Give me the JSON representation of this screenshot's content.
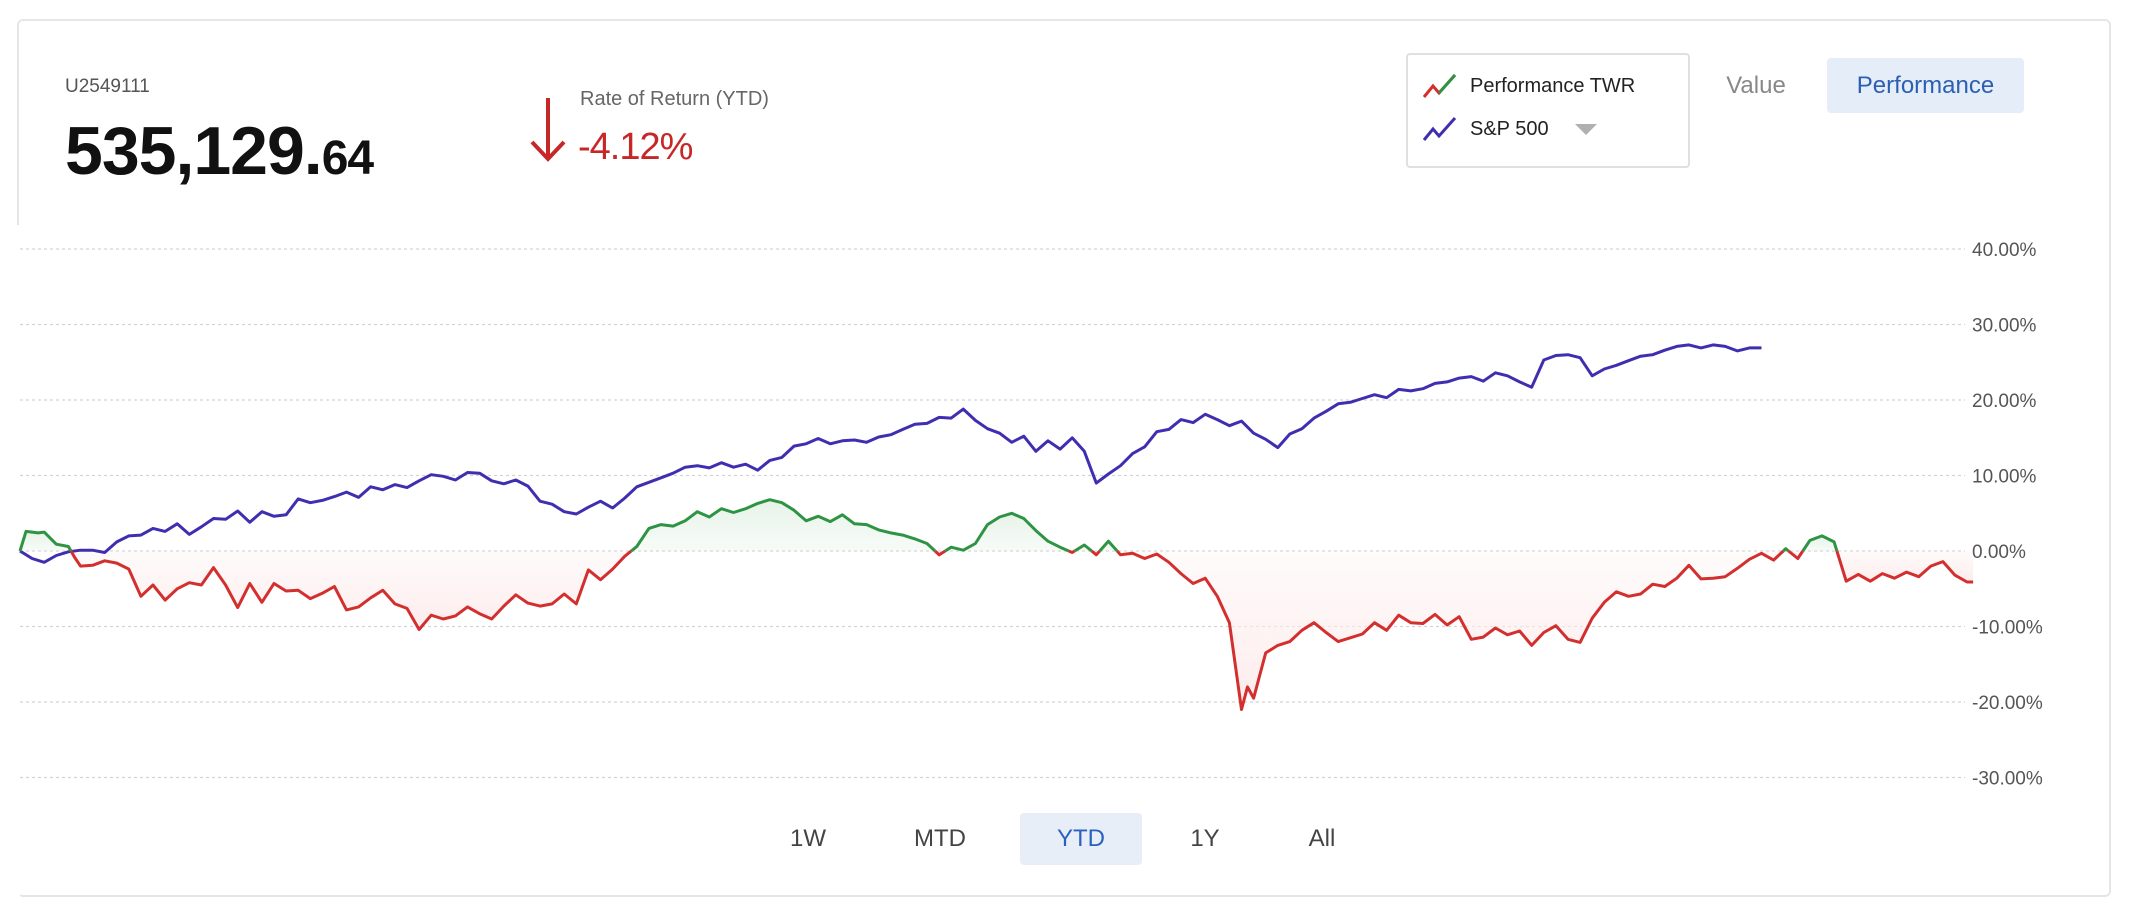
{
  "account": {
    "id": "U2549111",
    "balance_int": "535,129.",
    "balance_dec": "64"
  },
  "return": {
    "label": "Rate of Return (YTD)",
    "value": "-4.12%",
    "direction": "down",
    "color": "#c62828"
  },
  "legend": {
    "items": [
      {
        "label": "Performance TWR",
        "icon": "twr-line-icon"
      },
      {
        "label": "S&P 500",
        "icon": "benchmark-line-icon"
      }
    ]
  },
  "view_toggle": {
    "value_label": "Value",
    "performance_label": "Performance",
    "selected": "Performance"
  },
  "ranges": {
    "items": [
      {
        "label": "1W"
      },
      {
        "label": "MTD"
      },
      {
        "label": "YTD"
      },
      {
        "label": "1Y"
      },
      {
        "label": "All"
      }
    ],
    "selected": "YTD"
  },
  "chart_data": {
    "type": "line",
    "x_index_range": [
      0,
      300
    ],
    "ylim": [
      -30,
      40
    ],
    "yticks": [
      40,
      30,
      20,
      10,
      0,
      -10,
      -20,
      -30
    ],
    "ytick_labels": [
      "40.00%",
      "30.00%",
      "20.00%",
      "10.00%",
      "0.00%",
      "-10.00%",
      "-20.00%",
      "-30.00%"
    ],
    "grid": true,
    "legend_position": "top-right",
    "colors": {
      "positive": "#2e9444",
      "negative": "#d32f2f",
      "benchmark": "#3f2fb0",
      "positive_fill": "#e6f3e8",
      "negative_fill": "#fdecec"
    },
    "series": [
      {
        "name": "Performance TWR",
        "points": [
          [
            0,
            0
          ],
          [
            1,
            2.6
          ],
          [
            3,
            2.4
          ],
          [
            4,
            2.5
          ],
          [
            6,
            0.9
          ],
          [
            8,
            0.6
          ],
          [
            9,
            -0.8
          ],
          [
            10,
            -2
          ],
          [
            12,
            -1.9
          ],
          [
            14,
            -1.3
          ],
          [
            16,
            -1.6
          ],
          [
            18,
            -2.4
          ],
          [
            20,
            -6
          ],
          [
            22,
            -4.5
          ],
          [
            24,
            -6.5
          ],
          [
            26,
            -5
          ],
          [
            28,
            -4.2
          ],
          [
            30,
            -4.5
          ],
          [
            32,
            -2.2
          ],
          [
            34,
            -4.5
          ],
          [
            36,
            -7.5
          ],
          [
            38,
            -4.3
          ],
          [
            40,
            -6.8
          ],
          [
            42,
            -4.3
          ],
          [
            44,
            -5.3
          ],
          [
            46,
            -5.2
          ],
          [
            48,
            -6.3
          ],
          [
            50,
            -5.6
          ],
          [
            52,
            -4.7
          ],
          [
            54,
            -7.8
          ],
          [
            56,
            -7.4
          ],
          [
            58,
            -6.2
          ],
          [
            60,
            -5.2
          ],
          [
            62,
            -7
          ],
          [
            64,
            -7.6
          ],
          [
            66,
            -10.4
          ],
          [
            68,
            -8.5
          ],
          [
            70,
            -9
          ],
          [
            72,
            -8.6
          ],
          [
            74,
            -7.4
          ],
          [
            76,
            -8.3
          ],
          [
            78,
            -9
          ],
          [
            80,
            -7.3
          ],
          [
            82,
            -5.8
          ],
          [
            84,
            -6.9
          ],
          [
            86,
            -7.3
          ],
          [
            88,
            -7
          ],
          [
            90,
            -5.7
          ],
          [
            92,
            -7
          ],
          [
            94,
            -2.5
          ],
          [
            96,
            -3.8
          ],
          [
            98,
            -2.4
          ],
          [
            100,
            -0.7
          ],
          [
            102,
            0.6
          ],
          [
            104,
            3
          ],
          [
            106,
            3.5
          ],
          [
            108,
            3.3
          ],
          [
            110,
            4
          ],
          [
            112,
            5.2
          ],
          [
            114,
            4.5
          ],
          [
            116,
            5.6
          ],
          [
            118,
            5.1
          ],
          [
            120,
            5.6
          ],
          [
            122,
            6.3
          ],
          [
            124,
            6.8
          ],
          [
            126,
            6.4
          ],
          [
            128,
            5.4
          ],
          [
            130,
            4
          ],
          [
            132,
            4.6
          ],
          [
            134,
            3.9
          ],
          [
            136,
            4.8
          ],
          [
            138,
            3.6
          ],
          [
            140,
            3.5
          ],
          [
            142,
            2.8
          ],
          [
            144,
            2.4
          ],
          [
            146,
            2.1
          ],
          [
            148,
            1.6
          ],
          [
            150,
            1
          ],
          [
            152,
            -0.5
          ],
          [
            154,
            0.5
          ],
          [
            156,
            0.1
          ],
          [
            158,
            1
          ],
          [
            160,
            3.5
          ],
          [
            162,
            4.5
          ],
          [
            164,
            5
          ],
          [
            166,
            4.3
          ],
          [
            168,
            2.7
          ],
          [
            170,
            1.3
          ],
          [
            172,
            0.5
          ],
          [
            174,
            -0.2
          ],
          [
            176,
            0.8
          ],
          [
            178,
            -0.5
          ],
          [
            180,
            1.3
          ],
          [
            182,
            -0.5
          ],
          [
            184,
            -0.3
          ],
          [
            186,
            -1
          ],
          [
            188,
            -0.4
          ],
          [
            190,
            -1.5
          ],
          [
            192,
            -3
          ],
          [
            194,
            -4.3
          ],
          [
            196,
            -3.6
          ],
          [
            198,
            -6
          ],
          [
            200,
            -9.5
          ],
          [
            202,
            -21
          ],
          [
            203,
            -18
          ],
          [
            204,
            -19.5
          ],
          [
            206,
            -13.5
          ],
          [
            208,
            -12.5
          ],
          [
            210,
            -12
          ],
          [
            212,
            -10.5
          ],
          [
            214,
            -9.5
          ],
          [
            216,
            -10.8
          ],
          [
            218,
            -12
          ],
          [
            220,
            -11.5
          ],
          [
            222,
            -11
          ],
          [
            224,
            -9.5
          ],
          [
            226,
            -10.5
          ],
          [
            228,
            -8.5
          ],
          [
            230,
            -9.5
          ],
          [
            232,
            -9.6
          ],
          [
            234,
            -8.4
          ],
          [
            236,
            -9.8
          ],
          [
            238,
            -8.7
          ],
          [
            240,
            -11.7
          ],
          [
            242,
            -11.4
          ],
          [
            244,
            -10.2
          ],
          [
            246,
            -11.1
          ],
          [
            248,
            -10.6
          ],
          [
            250,
            -12.5
          ],
          [
            252,
            -10.8
          ],
          [
            254,
            -9.9
          ],
          [
            256,
            -11.7
          ],
          [
            258,
            -12.1
          ],
          [
            260,
            -8.9
          ],
          [
            262,
            -6.8
          ],
          [
            264,
            -5.4
          ],
          [
            266,
            -6
          ],
          [
            268,
            -5.7
          ],
          [
            270,
            -4.4
          ],
          [
            272,
            -4.7
          ],
          [
            274,
            -3.6
          ],
          [
            276,
            -1.9
          ],
          [
            278,
            -3.7
          ],
          [
            280,
            -3.6
          ],
          [
            282,
            -3.4
          ],
          [
            284,
            -2.3
          ],
          [
            286,
            -1.1
          ],
          [
            288,
            -0.3
          ],
          [
            290,
            -1.2
          ],
          [
            292,
            0.3
          ],
          [
            294,
            -1
          ],
          [
            296,
            1.4
          ],
          [
            298,
            2
          ],
          [
            300,
            1.2
          ],
          [
            302,
            -4
          ],
          [
            304,
            -3.1
          ],
          [
            306,
            -4
          ],
          [
            308,
            -3
          ],
          [
            310,
            -3.6
          ],
          [
            312,
            -2.8
          ],
          [
            314,
            -3.4
          ],
          [
            316,
            -2
          ],
          [
            318,
            -1.4
          ],
          [
            320,
            -3.2
          ],
          [
            322,
            -4.1
          ],
          [
            323,
            -4.1
          ]
        ]
      },
      {
        "name": "S&P 500",
        "points": [
          [
            0,
            0
          ],
          [
            2,
            -1
          ],
          [
            4,
            -1.5
          ],
          [
            6,
            -0.6
          ],
          [
            8,
            -0.1
          ],
          [
            10,
            0.1
          ],
          [
            12,
            0.1
          ],
          [
            14,
            -0.2
          ],
          [
            16,
            1.2
          ],
          [
            18,
            2
          ],
          [
            20,
            2.1
          ],
          [
            22,
            3
          ],
          [
            24,
            2.6
          ],
          [
            26,
            3.6
          ],
          [
            28,
            2.2
          ],
          [
            30,
            3.2
          ],
          [
            32,
            4.3
          ],
          [
            34,
            4.2
          ],
          [
            36,
            5.3
          ],
          [
            38,
            3.8
          ],
          [
            40,
            5.2
          ],
          [
            42,
            4.6
          ],
          [
            44,
            4.8
          ],
          [
            46,
            6.9
          ],
          [
            48,
            6.4
          ],
          [
            50,
            6.7
          ],
          [
            52,
            7.2
          ],
          [
            54,
            7.8
          ],
          [
            56,
            7.1
          ],
          [
            58,
            8.5
          ],
          [
            60,
            8.1
          ],
          [
            62,
            8.8
          ],
          [
            64,
            8.4
          ],
          [
            66,
            9.3
          ],
          [
            68,
            10.1
          ],
          [
            70,
            9.9
          ],
          [
            72,
            9.4
          ],
          [
            74,
            10.4
          ],
          [
            76,
            10.3
          ],
          [
            78,
            9.3
          ],
          [
            80,
            8.9
          ],
          [
            82,
            9.4
          ],
          [
            84,
            8.6
          ],
          [
            86,
            6.6
          ],
          [
            88,
            6.2
          ],
          [
            90,
            5.2
          ],
          [
            92,
            4.9
          ],
          [
            94,
            5.8
          ],
          [
            96,
            6.6
          ],
          [
            98,
            5.7
          ],
          [
            100,
            7
          ],
          [
            102,
            8.5
          ],
          [
            104,
            9.1
          ],
          [
            106,
            9.7
          ],
          [
            108,
            10.3
          ],
          [
            110,
            11.1
          ],
          [
            112,
            11.3
          ],
          [
            114,
            11
          ],
          [
            116,
            11.7
          ],
          [
            118,
            11.1
          ],
          [
            120,
            11.5
          ],
          [
            122,
            10.7
          ],
          [
            124,
            12
          ],
          [
            126,
            12.4
          ],
          [
            128,
            13.9
          ],
          [
            130,
            14.2
          ],
          [
            132,
            14.9
          ],
          [
            134,
            14.2
          ],
          [
            136,
            14.6
          ],
          [
            138,
            14.7
          ],
          [
            140,
            14.4
          ],
          [
            142,
            15.1
          ],
          [
            144,
            15.4
          ],
          [
            146,
            16.1
          ],
          [
            148,
            16.8
          ],
          [
            150,
            16.9
          ],
          [
            152,
            17.7
          ],
          [
            154,
            17.6
          ],
          [
            156,
            18.8
          ],
          [
            158,
            17.3
          ],
          [
            160,
            16.2
          ],
          [
            162,
            15.6
          ],
          [
            164,
            14.4
          ],
          [
            166,
            15.2
          ],
          [
            168,
            13.2
          ],
          [
            170,
            14.6
          ],
          [
            172,
            13.5
          ],
          [
            174,
            15
          ],
          [
            176,
            13.2
          ],
          [
            178,
            9
          ],
          [
            180,
            10.2
          ],
          [
            182,
            11.3
          ],
          [
            184,
            12.9
          ],
          [
            186,
            13.8
          ],
          [
            188,
            15.8
          ],
          [
            190,
            16.1
          ],
          [
            192,
            17.4
          ],
          [
            194,
            17
          ],
          [
            196,
            18.1
          ],
          [
            198,
            17.4
          ],
          [
            200,
            16.6
          ],
          [
            202,
            17.2
          ],
          [
            204,
            15.6
          ],
          [
            206,
            14.8
          ],
          [
            208,
            13.7
          ],
          [
            210,
            15.5
          ],
          [
            212,
            16.2
          ],
          [
            214,
            17.6
          ],
          [
            216,
            18.5
          ],
          [
            218,
            19.5
          ],
          [
            220,
            19.7
          ],
          [
            222,
            20.2
          ],
          [
            224,
            20.7
          ],
          [
            226,
            20.3
          ],
          [
            228,
            21.4
          ],
          [
            230,
            21.2
          ],
          [
            232,
            21.5
          ],
          [
            234,
            22.2
          ],
          [
            236,
            22.4
          ],
          [
            238,
            22.9
          ],
          [
            240,
            23.1
          ],
          [
            242,
            22.5
          ],
          [
            244,
            23.6
          ],
          [
            246,
            23.2
          ],
          [
            248,
            22.4
          ],
          [
            250,
            21.7
          ],
          [
            252,
            25.3
          ],
          [
            254,
            25.9
          ],
          [
            256,
            26
          ],
          [
            258,
            25.6
          ],
          [
            260,
            23.2
          ],
          [
            262,
            24.1
          ],
          [
            264,
            24.6
          ],
          [
            266,
            25.2
          ],
          [
            268,
            25.8
          ],
          [
            270,
            26
          ],
          [
            272,
            26.6
          ],
          [
            274,
            27.1
          ],
          [
            276,
            27.3
          ],
          [
            278,
            26.9
          ],
          [
            280,
            27.3
          ],
          [
            282,
            27.1
          ],
          [
            284,
            26.5
          ],
          [
            286,
            26.9
          ],
          [
            288,
            26.9
          ]
        ]
      }
    ]
  }
}
